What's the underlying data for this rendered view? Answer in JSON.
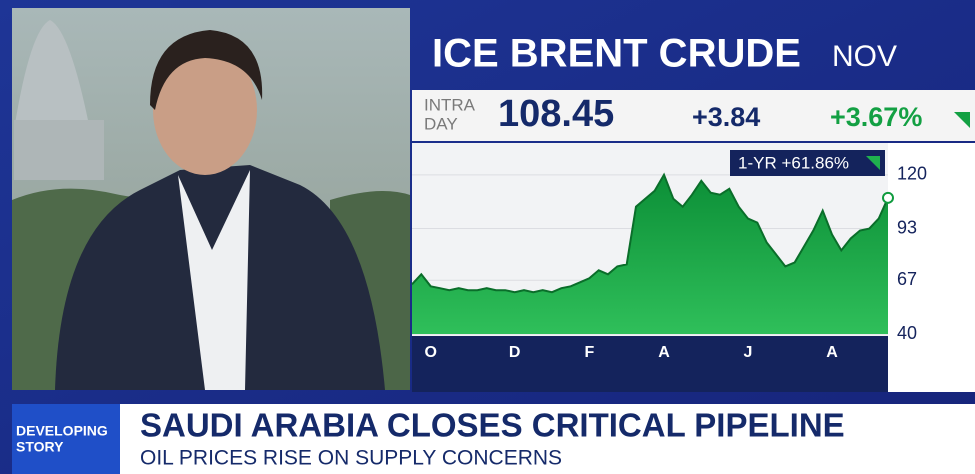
{
  "ticker": {
    "name": "ICE BRENT CRUDE",
    "contract": "NOV",
    "intraday_top": "INTRA",
    "intraday_bottom": "DAY",
    "price": "108.45",
    "change": "+3.84",
    "change_pct": "+3.67%"
  },
  "chart_data": {
    "type": "area",
    "badge": "1-YR +61.86%",
    "categories": [
      null,
      null,
      "O",
      null,
      null,
      null,
      null,
      null,
      null,
      null,
      null,
      "D",
      null,
      null,
      null,
      null,
      null,
      null,
      null,
      "F",
      null,
      null,
      null,
      null,
      null,
      null,
      null,
      "A",
      null,
      null,
      null,
      null,
      null,
      null,
      null,
      null,
      "J",
      null,
      null,
      null,
      null,
      null,
      null,
      null,
      null,
      "A",
      null,
      null,
      null,
      null,
      null,
      null
    ],
    "values": [
      65,
      70,
      64,
      63,
      62,
      63,
      62,
      62,
      63,
      62,
      62,
      61,
      62,
      61,
      62,
      61,
      63,
      64,
      66,
      68,
      72,
      70,
      74,
      75,
      104,
      108,
      112,
      120,
      108,
      104,
      110,
      117,
      111,
      110,
      113,
      104,
      98,
      96,
      86,
      80,
      74,
      76,
      84,
      92,
      102,
      90,
      82,
      88,
      92,
      93,
      98,
      108.45
    ],
    "color": "#0f9b3e",
    "ylim": [
      40,
      136
    ],
    "yticks": [
      40,
      67,
      93,
      120
    ],
    "grid": true
  },
  "banner": {
    "tag_top": "DEVELOPING",
    "tag_bottom": "STORY",
    "headline": "SAUDI ARABIA CLOSES CRITICAL PIPELINE",
    "subheadline": "OIL PRICES RISE ON SUPPLY CONCERNS"
  }
}
